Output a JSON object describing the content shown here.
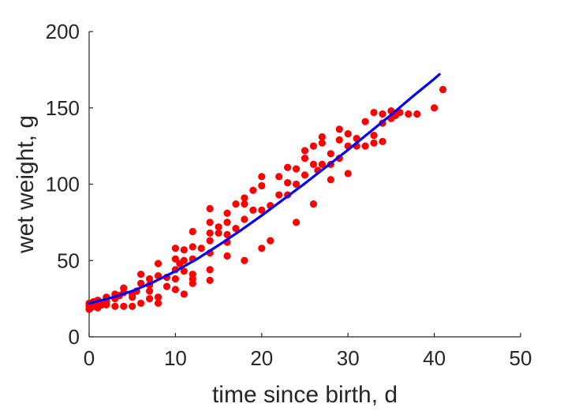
{
  "chart_data": {
    "type": "scatter",
    "title": "",
    "xlabel": "time since birth, d",
    "ylabel": "wet weight, g",
    "xlim": [
      0,
      50
    ],
    "ylim": [
      0,
      200
    ],
    "xticks": [
      0,
      10,
      20,
      30,
      40,
      50
    ],
    "yticks": [
      0,
      50,
      100,
      150,
      200
    ],
    "grid": false,
    "legend": "none",
    "series": [
      {
        "kind": "scatter",
        "color": "#ff0000",
        "points": [
          [
            0,
            18
          ],
          [
            0,
            20
          ],
          [
            0,
            22
          ],
          [
            0.2,
            19
          ],
          [
            0.5,
            21
          ],
          [
            0.5,
            23
          ],
          [
            1,
            19
          ],
          [
            1,
            22
          ],
          [
            1,
            24
          ],
          [
            1.5,
            21
          ],
          [
            2,
            21
          ],
          [
            2,
            23
          ],
          [
            2,
            26
          ],
          [
            3,
            20
          ],
          [
            3,
            25
          ],
          [
            3,
            28
          ],
          [
            3.5,
            27
          ],
          [
            4,
            29
          ],
          [
            4,
            32
          ],
          [
            4,
            20
          ],
          [
            5,
            20
          ],
          [
            5,
            26
          ],
          [
            5,
            28
          ],
          [
            5.5,
            30
          ],
          [
            6,
            22
          ],
          [
            6,
            35
          ],
          [
            6,
            41
          ],
          [
            7,
            25
          ],
          [
            7,
            30
          ],
          [
            7,
            34
          ],
          [
            7,
            38
          ],
          [
            8,
            22
          ],
          [
            8,
            26
          ],
          [
            8,
            40
          ],
          [
            8,
            48
          ],
          [
            9,
            33
          ],
          [
            9,
            39
          ],
          [
            10,
            31
          ],
          [
            10,
            38
          ],
          [
            10,
            44
          ],
          [
            10,
            51
          ],
          [
            10,
            58
          ],
          [
            10.5,
            48
          ],
          [
            11,
            28
          ],
          [
            11,
            43
          ],
          [
            11,
            50
          ],
          [
            11,
            57
          ],
          [
            12,
            35
          ],
          [
            12,
            38
          ],
          [
            12,
            41
          ],
          [
            12,
            51
          ],
          [
            12,
            59
          ],
          [
            12,
            69
          ],
          [
            13,
            58
          ],
          [
            14,
            37
          ],
          [
            14,
            44
          ],
          [
            14,
            55
          ],
          [
            14,
            63
          ],
          [
            14,
            68
          ],
          [
            14,
            75
          ],
          [
            14,
            84
          ],
          [
            15,
            68
          ],
          [
            15,
            72
          ],
          [
            16,
            53
          ],
          [
            16,
            62
          ],
          [
            16,
            67
          ],
          [
            16,
            75
          ],
          [
            16,
            81
          ],
          [
            17,
            71
          ],
          [
            17,
            87
          ],
          [
            18,
            50
          ],
          [
            18,
            77
          ],
          [
            18,
            87
          ],
          [
            18,
            91
          ],
          [
            19,
            83
          ],
          [
            19,
            96
          ],
          [
            20,
            58
          ],
          [
            20,
            83
          ],
          [
            20,
            99
          ],
          [
            20,
            105
          ],
          [
            21,
            63
          ],
          [
            21,
            86
          ],
          [
            22,
            93
          ],
          [
            22,
            105
          ],
          [
            23,
            93
          ],
          [
            23,
            101
          ],
          [
            23,
            111
          ],
          [
            24,
            75
          ],
          [
            24,
            100
          ],
          [
            24,
            110
          ],
          [
            25,
            106
          ],
          [
            25,
            117
          ],
          [
            25,
            122
          ],
          [
            26,
            87
          ],
          [
            26,
            113
          ],
          [
            26,
            125
          ],
          [
            26.5,
            109
          ],
          [
            27,
            113
          ],
          [
            27,
            127
          ],
          [
            27,
            131
          ],
          [
            28,
            103
          ],
          [
            28,
            113
          ],
          [
            28,
            120
          ],
          [
            29,
            117
          ],
          [
            29,
            129
          ],
          [
            29,
            136
          ],
          [
            30,
            107
          ],
          [
            30,
            125
          ],
          [
            30,
            133
          ],
          [
            31,
            125
          ],
          [
            31,
            130
          ],
          [
            32,
            125
          ],
          [
            32,
            141
          ],
          [
            33,
            127
          ],
          [
            33,
            132
          ],
          [
            33,
            147
          ],
          [
            34,
            128
          ],
          [
            34,
            140
          ],
          [
            34,
            146
          ],
          [
            35,
            143
          ],
          [
            35,
            148
          ],
          [
            35.5,
            145
          ],
          [
            36,
            147
          ],
          [
            37,
            146
          ],
          [
            38,
            146
          ],
          [
            40,
            150
          ],
          [
            41,
            162
          ]
        ]
      },
      {
        "kind": "line",
        "color": "#0000ff",
        "x": [
          0,
          2.5,
          5,
          7.5,
          10,
          12.5,
          15,
          17.5,
          20,
          22.5,
          25,
          27.5,
          30,
          32.5,
          35,
          37.5,
          40,
          40.6
        ],
        "y": [
          22,
          25.5,
          30,
          36,
          43,
          51,
          60,
          69.5,
          79.5,
          90,
          100.5,
          111.5,
          122.5,
          134,
          145.5,
          157.5,
          169,
          172
        ]
      }
    ]
  }
}
